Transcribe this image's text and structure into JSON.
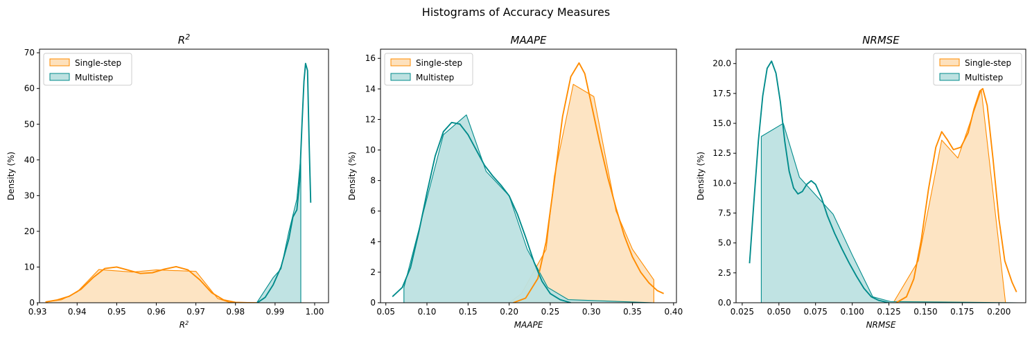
{
  "suptitle": "Histograms of Accuracy Measures",
  "legend_labels": [
    "Single-step",
    "Multistep"
  ],
  "colors": {
    "single_line": "#ff8c00",
    "single_fill": "#fde1bd",
    "multi_line": "#008b8b",
    "multi_fill": "#bde1e1"
  },
  "chart_data": [
    {
      "type": "area",
      "title": "R",
      "title_sup": "2",
      "xlabel": "R",
      "xlabel_sup": "2",
      "ylabel": "Density (%)",
      "xlim": [
        0.9305,
        1.0035
      ],
      "ylim": [
        0,
        71
      ],
      "xticks": [
        0.93,
        0.94,
        0.95,
        0.96,
        0.97,
        0.98,
        0.99,
        1.0
      ],
      "xtick_labels": [
        "0.93",
        "0.94",
        "0.95",
        "0.96",
        "0.97",
        "0.98",
        "0.99",
        "1.00"
      ],
      "yticks": [
        0,
        10,
        20,
        30,
        40,
        50,
        60,
        70
      ],
      "ytick_labels": [
        "0",
        "10",
        "20",
        "30",
        "40",
        "50",
        "60",
        "70"
      ],
      "legend_position": "upper left",
      "series": [
        {
          "name": "Single-step",
          "hist": [
            [
              0.9325,
              0.0
            ],
            [
              0.9325,
              0.3
            ],
            [
              0.936,
              0.8
            ],
            [
              0.94,
              3.0
            ],
            [
              0.9455,
              9.3
            ],
            [
              0.954,
              8.6
            ],
            [
              0.96,
              9.2
            ],
            [
              0.97,
              8.8
            ],
            [
              0.9755,
              1.2
            ],
            [
              0.9785,
              0.1
            ],
            [
              0.9995,
              0.0
            ]
          ],
          "kde": [
            [
              0.932,
              0.2
            ],
            [
              0.935,
              0.8
            ],
            [
              0.938,
              1.8
            ],
            [
              0.941,
              3.8
            ],
            [
              0.944,
              7.0
            ],
            [
              0.947,
              9.6
            ],
            [
              0.95,
              10.0
            ],
            [
              0.953,
              9.1
            ],
            [
              0.956,
              8.2
            ],
            [
              0.959,
              8.4
            ],
            [
              0.962,
              9.4
            ],
            [
              0.965,
              10.1
            ],
            [
              0.968,
              9.2
            ],
            [
              0.971,
              6.4
            ],
            [
              0.974,
              2.8
            ],
            [
              0.977,
              0.8
            ],
            [
              0.98,
              0.1
            ],
            [
              0.983,
              0.0
            ]
          ]
        },
        {
          "name": "Multistep",
          "hist": [
            [
              0.9855,
              0.0
            ],
            [
              0.9855,
              0.2
            ],
            [
              0.9895,
              7.0
            ],
            [
              0.9915,
              9.5
            ],
            [
              0.9935,
              20.0
            ],
            [
              0.9955,
              29.0
            ],
            [
              0.9965,
              41.0
            ],
            [
              0.9965,
              0.0
            ]
          ],
          "kde": [
            [
              0.9855,
              0.0
            ],
            [
              0.9875,
              1.5
            ],
            [
              0.9895,
              5.0
            ],
            [
              0.9915,
              10.0
            ],
            [
              0.9935,
              18.0
            ],
            [
              0.9945,
              24.0
            ],
            [
              0.9955,
              26.0
            ],
            [
              0.9962,
              34.0
            ],
            [
              0.9968,
              50.0
            ],
            [
              0.9973,
              62.0
            ],
            [
              0.9977,
              67.0
            ],
            [
              0.9982,
              65.0
            ],
            [
              0.9986,
              45.0
            ],
            [
              0.999,
              28.0
            ]
          ]
        }
      ]
    },
    {
      "type": "area",
      "title": "MAAPE",
      "xlabel": "MAAPE",
      "ylabel": "Density (%)",
      "xlim": [
        0.0435,
        0.4035
      ],
      "ylim": [
        0,
        16.6
      ],
      "xticks": [
        0.05,
        0.1,
        0.15,
        0.2,
        0.25,
        0.3,
        0.35,
        0.4
      ],
      "xtick_labels": [
        "0.05",
        "0.10",
        "0.15",
        "0.20",
        "0.25",
        "0.30",
        "0.35",
        "0.40"
      ],
      "yticks": [
        0,
        2,
        4,
        6,
        8,
        10,
        12,
        14,
        16
      ],
      "ytick_labels": [
        "0",
        "2",
        "4",
        "6",
        "8",
        "10",
        "12",
        "14",
        "16"
      ],
      "legend_position": "upper left",
      "series": [
        {
          "name": "Single-step",
          "hist": [
            [
              0.072,
              0.0
            ],
            [
              0.2,
              0.0
            ],
            [
              0.215,
              0.6
            ],
            [
              0.245,
              3.5
            ],
            [
              0.255,
              8.3
            ],
            [
              0.278,
              14.3
            ],
            [
              0.303,
              13.5
            ],
            [
              0.33,
              6.0
            ],
            [
              0.35,
              3.5
            ],
            [
              0.376,
              1.5
            ],
            [
              0.376,
              0.0
            ]
          ],
          "kde": [
            [
              0.205,
              0.0
            ],
            [
              0.22,
              0.3
            ],
            [
              0.235,
              1.6
            ],
            [
              0.245,
              4.0
            ],
            [
              0.255,
              8.0
            ],
            [
              0.265,
              12.2
            ],
            [
              0.275,
              14.8
            ],
            [
              0.285,
              15.7
            ],
            [
              0.292,
              15.0
            ],
            [
              0.3,
              13.0
            ],
            [
              0.31,
              10.5
            ],
            [
              0.32,
              8.2
            ],
            [
              0.33,
              6.2
            ],
            [
              0.34,
              4.4
            ],
            [
              0.35,
              3.0
            ],
            [
              0.36,
              2.0
            ],
            [
              0.37,
              1.3
            ],
            [
              0.38,
              0.8
            ],
            [
              0.388,
              0.6
            ]
          ]
        },
        {
          "name": "Multistep",
          "hist": [
            [
              0.072,
              0.0
            ],
            [
              0.072,
              1.0
            ],
            [
              0.12,
              11.0
            ],
            [
              0.148,
              12.3
            ],
            [
              0.172,
              8.6
            ],
            [
              0.2,
              7.0
            ],
            [
              0.222,
              3.5
            ],
            [
              0.247,
              1.0
            ],
            [
              0.272,
              0.2
            ],
            [
              0.376,
              0.0
            ]
          ],
          "kde": [
            [
              0.058,
              0.4
            ],
            [
              0.07,
              1.0
            ],
            [
              0.08,
              2.3
            ],
            [
              0.09,
              4.6
            ],
            [
              0.1,
              7.2
            ],
            [
              0.11,
              9.6
            ],
            [
              0.12,
              11.2
            ],
            [
              0.13,
              11.8
            ],
            [
              0.14,
              11.7
            ],
            [
              0.15,
              11.0
            ],
            [
              0.16,
              10.0
            ],
            [
              0.17,
              9.0
            ],
            [
              0.18,
              8.3
            ],
            [
              0.19,
              7.7
            ],
            [
              0.2,
              7.0
            ],
            [
              0.21,
              5.8
            ],
            [
              0.22,
              4.3
            ],
            [
              0.23,
              2.7
            ],
            [
              0.24,
              1.4
            ],
            [
              0.25,
              0.6
            ],
            [
              0.262,
              0.2
            ],
            [
              0.275,
              0.0
            ]
          ]
        }
      ]
    },
    {
      "type": "area",
      "title": "NRMSE",
      "xlabel": "NRMSE",
      "ylabel": "Density (%)",
      "xlim": [
        0.0208,
        0.2183
      ],
      "ylim": [
        0,
        21.2
      ],
      "xticks": [
        0.025,
        0.05,
        0.075,
        0.1,
        0.125,
        0.15,
        0.175,
        0.2
      ],
      "xtick_labels": [
        "0.025",
        "0.050",
        "0.075",
        "0.100",
        "0.125",
        "0.150",
        "0.175",
        "0.200"
      ],
      "yticks": [
        0,
        2.5,
        5,
        7.5,
        10,
        12.5,
        15,
        17.5,
        20
      ],
      "ytick_labels": [
        "0.0",
        "2.5",
        "5.0",
        "7.5",
        "10.0",
        "12.5",
        "15.0",
        "17.5",
        "20.0"
      ],
      "legend_position": "upper right",
      "series": [
        {
          "name": "Single-step",
          "hist": [
            [
              0.038,
              0.0
            ],
            [
              0.128,
              0.0
            ],
            [
              0.145,
              3.5
            ],
            [
              0.161,
              13.6
            ],
            [
              0.172,
              12.1
            ],
            [
              0.188,
              17.8
            ],
            [
              0.2045,
              0.0
            ]
          ],
          "kde": [
            [
              0.13,
              0.0
            ],
            [
              0.137,
              0.5
            ],
            [
              0.142,
              2.0
            ],
            [
              0.147,
              5.2
            ],
            [
              0.152,
              9.5
            ],
            [
              0.157,
              13.0
            ],
            [
              0.161,
              14.3
            ],
            [
              0.165,
              13.6
            ],
            [
              0.169,
              12.8
            ],
            [
              0.174,
              13.0
            ],
            [
              0.179,
              14.2
            ],
            [
              0.183,
              16.2
            ],
            [
              0.187,
              17.7
            ],
            [
              0.189,
              17.9
            ],
            [
              0.192,
              16.5
            ],
            [
              0.196,
              12.0
            ],
            [
              0.2,
              7.0
            ],
            [
              0.204,
              3.5
            ],
            [
              0.209,
              1.7
            ],
            [
              0.212,
              0.9
            ]
          ]
        },
        {
          "name": "Multistep",
          "hist": [
            [
              0.038,
              0.0
            ],
            [
              0.038,
              13.9
            ],
            [
              0.053,
              15.0
            ],
            [
              0.064,
              10.5
            ],
            [
              0.087,
              7.4
            ],
            [
              0.1,
              4.0
            ],
            [
              0.114,
              0.5
            ],
            [
              0.126,
              0.1
            ],
            [
              0.213,
              0.0
            ]
          ],
          "kde": [
            [
              0.03,
              3.3
            ],
            [
              0.033,
              8.5
            ],
            [
              0.036,
              13.5
            ],
            [
              0.039,
              17.3
            ],
            [
              0.042,
              19.6
            ],
            [
              0.045,
              20.2
            ],
            [
              0.048,
              19.2
            ],
            [
              0.051,
              16.8
            ],
            [
              0.054,
              13.5
            ],
            [
              0.057,
              11.0
            ],
            [
              0.06,
              9.6
            ],
            [
              0.063,
              9.1
            ],
            [
              0.066,
              9.3
            ],
            [
              0.069,
              9.9
            ],
            [
              0.072,
              10.2
            ],
            [
              0.075,
              9.9
            ],
            [
              0.079,
              8.8
            ],
            [
              0.083,
              7.3
            ],
            [
              0.088,
              5.8
            ],
            [
              0.093,
              4.5
            ],
            [
              0.098,
              3.3
            ],
            [
              0.103,
              2.2
            ],
            [
              0.108,
              1.2
            ],
            [
              0.113,
              0.5
            ],
            [
              0.118,
              0.2
            ],
            [
              0.125,
              0.0
            ]
          ]
        }
      ]
    }
  ]
}
